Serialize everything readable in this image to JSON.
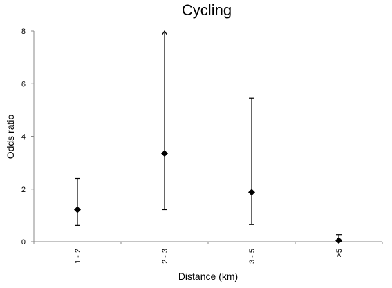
{
  "chart_data": {
    "type": "scatter",
    "title": "Cycling",
    "xlabel": "Distance (km)",
    "ylabel": "Odds ratio",
    "ylim": [
      0,
      8
    ],
    "yticks": [
      0,
      2,
      4,
      6,
      8
    ],
    "grid": false,
    "legend": "none",
    "categories": [
      "1 - 2",
      "2 - 3",
      "3 - 5",
      ">5"
    ],
    "series": [
      {
        "values": [
          1.22,
          3.35,
          1.88,
          0.05
        ],
        "lower": [
          0.62,
          1.22,
          0.65,
          0.0
        ],
        "upper": [
          2.4,
          8.0,
          5.45,
          0.27
        ],
        "upper_clipped": [
          false,
          true,
          false,
          false
        ],
        "marker": "diamond",
        "color": "#000000"
      }
    ]
  }
}
